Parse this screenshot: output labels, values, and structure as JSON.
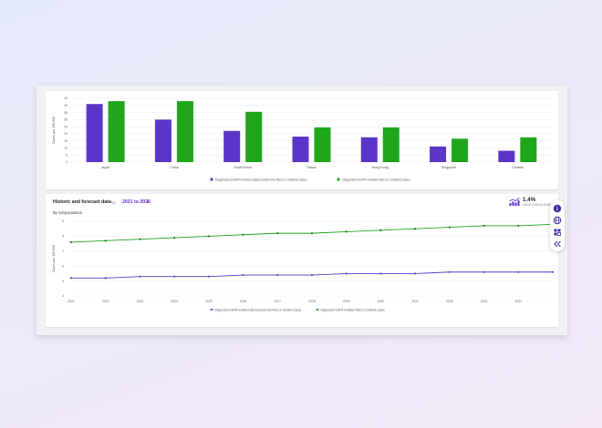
{
  "bar_chart": {
    "legend": [
      {
        "label": "Diagnosed EGFR mutated adenocarcinoma NSCLC incident cases",
        "color": "#5b35c8"
      },
      {
        "label": "Diagnosed EGFR mutated NSCLC incident cases",
        "color": "#1fa51a"
      }
    ]
  },
  "line_panel": {
    "title": "Historic and forecast data",
    "for_label": "for",
    "range": "2021 to 2035",
    "subtitle": "By subpopulation",
    "cagr_value": "1.4%",
    "cagr_label": "CAGR (2021 to 2035)"
  },
  "toolbar": {
    "icons": [
      "info-icon",
      "globe-icon",
      "grid-icon",
      "collapse-icon"
    ]
  },
  "chart_data": [
    {
      "type": "bar",
      "categories": [
        "Japan",
        "China",
        "South Korea",
        "Taiwan",
        "Hong Kong",
        "Singapore",
        "Canada"
      ],
      "ylabel": "Cases per 100,000",
      "yticks": [
        "0",
        "5",
        "10",
        "15",
        "20",
        "25",
        "30",
        "35",
        "40",
        "45"
      ],
      "ylim": [
        0,
        45
      ],
      "series": [
        {
          "name": "Diagnosed EGFR mutated adenocarcinoma NSCLC incident cases",
          "color": "#5b35c8",
          "values": [
            41,
            30,
            22,
            18,
            17.5,
            11,
            8
          ]
        },
        {
          "name": "Diagnosed EGFR mutated NSCLC incident cases",
          "color": "#1fa51a",
          "values": [
            43,
            43,
            35.5,
            24.5,
            24.5,
            16.5,
            17.5
          ]
        }
      ],
      "grid": true,
      "legend_position": "bottom"
    },
    {
      "type": "line",
      "x": [
        "2021",
        "2022",
        "2023",
        "2024",
        "2025",
        "2026",
        "2027",
        "2028",
        "2029",
        "2030",
        "2031",
        "2032",
        "2033",
        "2034",
        "2035"
      ],
      "xticks": [
        "2021",
        "2022",
        "2023",
        "2024",
        "2025",
        "2026",
        "2027",
        "2028",
        "2029",
        "2030",
        "2031",
        "2032",
        "2033",
        "2034"
      ],
      "ylabel": "Cases per 100,000",
      "yticks": [
        "4",
        "5",
        "6",
        "7",
        "8",
        "9"
      ],
      "ylim": [
        4,
        9
      ],
      "series": [
        {
          "name": "Diagnosed EGFR mutated adenocarcinoma NSCLC incident cases",
          "color": "#5b35c8",
          "values": [
            5.2,
            5.2,
            5.3,
            5.3,
            5.3,
            5.4,
            5.4,
            5.4,
            5.5,
            5.5,
            5.5,
            5.6,
            5.6,
            5.6,
            5.6
          ]
        },
        {
          "name": "Diagnosed EGFR mutated NSCLC incident cases",
          "color": "#1fa51a",
          "values": [
            7.6,
            7.7,
            7.8,
            7.9,
            8.0,
            8.1,
            8.2,
            8.2,
            8.3,
            8.4,
            8.5,
            8.6,
            8.7,
            8.7,
            8.8
          ]
        }
      ],
      "grid": true,
      "legend_position": "bottom"
    }
  ]
}
